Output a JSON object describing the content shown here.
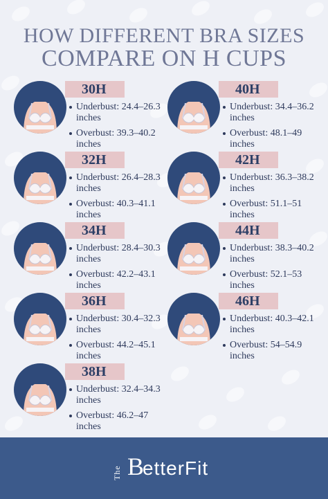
{
  "title": {
    "line1": "HOW DIFFERENT BRA SIZES",
    "line2": "COMPARE ON H CUPS"
  },
  "colors": {
    "background": "#eef0f6",
    "title": "#6f7796",
    "badge": "#e6c6c9",
    "avatar_bg": "#2f4a7a",
    "footer": "#3c5a8b",
    "text": "#2e3a5c"
  },
  "sizes": [
    {
      "size": "30H",
      "underbust": "Underbust: 24.4–26.3",
      "underbust_unit": "inches",
      "overbust": "Overbust: 39.3–40.2",
      "overbust_unit": "inches",
      "icon": "bust-illustration"
    },
    {
      "size": "40H",
      "underbust": "Underbust: 34.4–36.2",
      "underbust_unit": "inches",
      "overbust": "Overbust: 48.1–49",
      "overbust_unit": "inches",
      "icon": "bust-illustration"
    },
    {
      "size": "32H",
      "underbust": "Underbust: 26.4–28.3",
      "underbust_unit": "inches",
      "overbust": "Overbust: 40.3–41.1",
      "overbust_unit": "inches",
      "icon": "bust-illustration"
    },
    {
      "size": "42H",
      "underbust": "Underbust: 36.3–38.2",
      "underbust_unit": "inches",
      "overbust": "Overbust: 51.1–51",
      "overbust_unit": "inches",
      "icon": "bust-illustration"
    },
    {
      "size": "34H",
      "underbust": "Underbust: 28.4–30.3",
      "underbust_unit": "inches",
      "overbust": "Overbust: 42.2–43.1",
      "overbust_unit": "inches",
      "icon": "bust-illustration"
    },
    {
      "size": "44H",
      "underbust": "Underbust: 38.3–40.2",
      "underbust_unit": "inches",
      "overbust": "Overbust: 52.1–53",
      "overbust_unit": "inches",
      "icon": "bust-illustration"
    },
    {
      "size": "36H",
      "underbust": "Underbust: 30.4–32.3",
      "underbust_unit": "inches",
      "overbust": "Overbust: 44.2–45.1",
      "overbust_unit": "inches",
      "icon": "bust-illustration"
    },
    {
      "size": "46H",
      "underbust": "Underbust: 40.3–42.1",
      "underbust_unit": "inches",
      "overbust": "Overbust: 54–54.9",
      "overbust_unit": "inches",
      "icon": "bust-illustration"
    },
    {
      "size": "38H",
      "underbust": "Underbust: 32.4–34.3",
      "underbust_unit": "inches",
      "overbust": "Overbust: 46.2–47",
      "overbust_unit": "inches",
      "icon": "bust-illustration"
    }
  ],
  "footer": {
    "logo_the": "The",
    "logo_b": "B",
    "logo_word": "etterFit"
  }
}
